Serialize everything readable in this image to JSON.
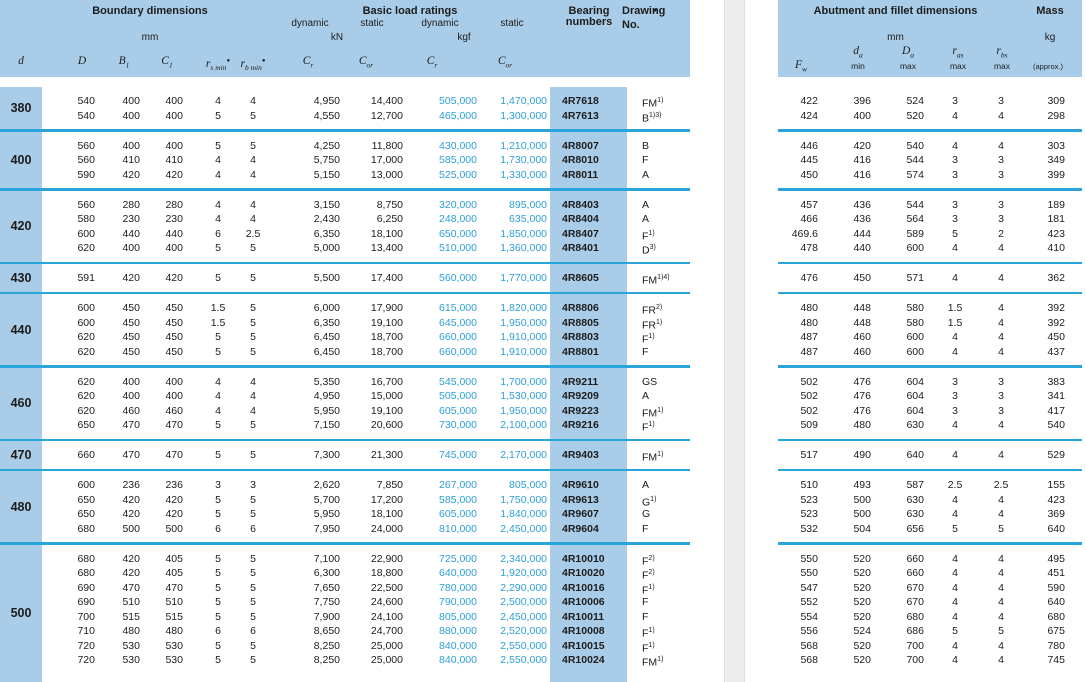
{
  "colors": {
    "band": "#a9cde9",
    "separator_line": "#29a5da",
    "kgf_text": "#2d9fd6",
    "gutter": "#ededeb"
  },
  "left_header": {
    "boundary_title": "Boundary dimensions",
    "boundary_unit": "mm",
    "load_title": "Basic load ratings",
    "dynamic1": "dynamic",
    "static1": "static",
    "dynamic2": "dynamic",
    "static2": "static",
    "kn": "kN",
    "kgf": "kgf",
    "bearing_title": "Bearing\nnumbers",
    "drawing_line1": "Drawing",
    "drawing_note": "●",
    "drawing_line2": "No.",
    "symbols": {
      "d": {
        "base": "d"
      },
      "D": {
        "base": "D"
      },
      "B1": {
        "base": "B",
        "sub": "1"
      },
      "C1": {
        "base": "C",
        "sub": "1"
      },
      "rs": {
        "base": "r",
        "sub": "s min",
        "note": "●"
      },
      "rb": {
        "base": "r",
        "sub": "b min",
        "note": "●"
      },
      "cr1": {
        "base": "C",
        "sub": "r"
      },
      "cor1": {
        "base": "C",
        "sub": "or"
      },
      "cr2": {
        "base": "C",
        "sub": "r"
      },
      "cor2": {
        "base": "C",
        "sub": "or"
      }
    }
  },
  "right_header": {
    "abutment_title": "Abutment and fillet dimensions",
    "unit": "mm",
    "mass_title": "Mass",
    "mass_unit": "kg",
    "approx": "(approx.)",
    "min": "min",
    "max": "max",
    "symbols": {
      "Fw": {
        "base": "F",
        "sub": "w"
      },
      "da": {
        "base": "d",
        "sub": "a"
      },
      "Da": {
        "base": "D",
        "sub": "a"
      },
      "ras": {
        "base": "r",
        "sub": "as"
      },
      "rbs": {
        "base": "r",
        "sub": "bs"
      }
    }
  },
  "groups": [
    {
      "d": "380",
      "rows": [
        {
          "D": "540",
          "B1": "400",
          "C1": "400",
          "rs": "4",
          "rb": "4",
          "cr_kn": "4,950",
          "cor_kn": "14,400",
          "cr_kgf": "505,000",
          "cor_kgf": "1,470,000",
          "bearing": "4R7618",
          "drawing": "FM",
          "drawing_sup": "1)"
        },
        {
          "D": "540",
          "B1": "400",
          "C1": "400",
          "rs": "5",
          "rb": "5",
          "cr_kn": "4,550",
          "cor_kn": "12,700",
          "cr_kgf": "465,000",
          "cor_kgf": "1,300,000",
          "bearing": "4R7613",
          "drawing": "B",
          "drawing_sup": "1)3)"
        }
      ],
      "right_rows": [
        {
          "fw": "422",
          "da": "396",
          "Da": "524",
          "ras": "3",
          "rbs": "3",
          "mass": "309"
        },
        {
          "fw": "424",
          "da": "400",
          "Da": "520",
          "ras": "4",
          "rbs": "4",
          "mass": "298"
        }
      ]
    },
    {
      "d": "400",
      "rows": [
        {
          "D": "560",
          "B1": "400",
          "C1": "400",
          "rs": "5",
          "rb": "5",
          "cr_kn": "4,250",
          "cor_kn": "11,800",
          "cr_kgf": "430,000",
          "cor_kgf": "1,210,000",
          "bearing": "4R8007",
          "drawing": "B",
          "drawing_sup": ""
        },
        {
          "D": "560",
          "B1": "410",
          "C1": "410",
          "rs": "4",
          "rb": "4",
          "cr_kn": "5,750",
          "cor_kn": "17,000",
          "cr_kgf": "585,000",
          "cor_kgf": "1,730,000",
          "bearing": "4R8010",
          "drawing": "F",
          "drawing_sup": ""
        },
        {
          "D": "590",
          "B1": "420",
          "C1": "420",
          "rs": "4",
          "rb": "4",
          "cr_kn": "5,150",
          "cor_kn": "13,000",
          "cr_kgf": "525,000",
          "cor_kgf": "1,330,000",
          "bearing": "4R8011",
          "drawing": "A",
          "drawing_sup": ""
        }
      ],
      "right_rows": [
        {
          "fw": "446",
          "da": "420",
          "Da": "540",
          "ras": "4",
          "rbs": "4",
          "mass": "303"
        },
        {
          "fw": "445",
          "da": "416",
          "Da": "544",
          "ras": "3",
          "rbs": "3",
          "mass": "349"
        },
        {
          "fw": "450",
          "da": "416",
          "Da": "574",
          "ras": "3",
          "rbs": "3",
          "mass": "399"
        }
      ]
    },
    {
      "d": "420",
      "rows": [
        {
          "D": "560",
          "B1": "280",
          "C1": "280",
          "rs": "4",
          "rb": "4",
          "cr_kn": "3,150",
          "cor_kn": "8,750",
          "cr_kgf": "320,000",
          "cor_kgf": "895,000",
          "bearing": "4R8403",
          "drawing": "A",
          "drawing_sup": ""
        },
        {
          "D": "580",
          "B1": "230",
          "C1": "230",
          "rs": "4",
          "rb": "4",
          "cr_kn": "2,430",
          "cor_kn": "6,250",
          "cr_kgf": "248,000",
          "cor_kgf": "635,000",
          "bearing": "4R8404",
          "drawing": "A",
          "drawing_sup": ""
        },
        {
          "D": "600",
          "B1": "440",
          "C1": "440",
          "rs": "6",
          "rb": "2.5",
          "cr_kn": "6,350",
          "cor_kn": "18,100",
          "cr_kgf": "650,000",
          "cor_kgf": "1,850,000",
          "bearing": "4R8407",
          "drawing": "F",
          "drawing_sup": "1)"
        },
        {
          "D": "620",
          "B1": "400",
          "C1": "400",
          "rs": "5",
          "rb": "5",
          "cr_kn": "5,000",
          "cor_kn": "13,400",
          "cr_kgf": "510,000",
          "cor_kgf": "1,360,000",
          "bearing": "4R8401",
          "drawing": "D",
          "drawing_sup": "3)"
        }
      ],
      "right_rows": [
        {
          "fw": "457",
          "da": "436",
          "Da": "544",
          "ras": "3",
          "rbs": "3",
          "mass": "189"
        },
        {
          "fw": "466",
          "da": "436",
          "Da": "564",
          "ras": "3",
          "rbs": "3",
          "mass": "181"
        },
        {
          "fw": "469.6",
          "da": "444",
          "Da": "589",
          "ras": "5",
          "rbs": "2",
          "mass": "423"
        },
        {
          "fw": "478",
          "da": "440",
          "Da": "600",
          "ras": "4",
          "rbs": "4",
          "mass": "410"
        }
      ]
    },
    {
      "d": "430",
      "rows": [
        {
          "D": "591",
          "B1": "420",
          "C1": "420",
          "rs": "5",
          "rb": "5",
          "cr_kn": "5,500",
          "cor_kn": "17,400",
          "cr_kgf": "560,000",
          "cor_kgf": "1,770,000",
          "bearing": "4R8605",
          "drawing": "FM",
          "drawing_sup": "1)4)"
        }
      ],
      "right_rows": [
        {
          "fw": "476",
          "da": "450",
          "Da": "571",
          "ras": "4",
          "rbs": "4",
          "mass": "362"
        }
      ]
    },
    {
      "d": "440",
      "rows": [
        {
          "D": "600",
          "B1": "450",
          "C1": "450",
          "rs": "1.5",
          "rb": "5",
          "cr_kn": "6,000",
          "cor_kn": "17,900",
          "cr_kgf": "615,000",
          "cor_kgf": "1,820,000",
          "bearing": "4R8806",
          "drawing": "FR",
          "drawing_sup": "2)"
        },
        {
          "D": "600",
          "B1": "450",
          "C1": "450",
          "rs": "1.5",
          "rb": "5",
          "cr_kn": "6,350",
          "cor_kn": "19,100",
          "cr_kgf": "645,000",
          "cor_kgf": "1,950,000",
          "bearing": "4R8805",
          "drawing": "FR",
          "drawing_sup": "1)"
        },
        {
          "D": "620",
          "B1": "450",
          "C1": "450",
          "rs": "5",
          "rb": "5",
          "cr_kn": "6,450",
          "cor_kn": "18,700",
          "cr_kgf": "660,000",
          "cor_kgf": "1,910,000",
          "bearing": "4R8803",
          "drawing": "F",
          "drawing_sup": "1)"
        },
        {
          "D": "620",
          "B1": "450",
          "C1": "450",
          "rs": "5",
          "rb": "5",
          "cr_kn": "6,450",
          "cor_kn": "18,700",
          "cr_kgf": "660,000",
          "cor_kgf": "1,910,000",
          "bearing": "4R8801",
          "drawing": "F",
          "drawing_sup": ""
        }
      ],
      "right_rows": [
        {
          "fw": "480",
          "da": "448",
          "Da": "580",
          "ras": "1.5",
          "rbs": "4",
          "mass": "392"
        },
        {
          "fw": "480",
          "da": "448",
          "Da": "580",
          "ras": "1.5",
          "rbs": "4",
          "mass": "392"
        },
        {
          "fw": "487",
          "da": "460",
          "Da": "600",
          "ras": "4",
          "rbs": "4",
          "mass": "450"
        },
        {
          "fw": "487",
          "da": "460",
          "Da": "600",
          "ras": "4",
          "rbs": "4",
          "mass": "437"
        }
      ]
    },
    {
      "d": "460",
      "rows": [
        {
          "D": "620",
          "B1": "400",
          "C1": "400",
          "rs": "4",
          "rb": "4",
          "cr_kn": "5,350",
          "cor_kn": "16,700",
          "cr_kgf": "545,000",
          "cor_kgf": "1,700,000",
          "bearing": "4R9211",
          "drawing": "GS",
          "drawing_sup": ""
        },
        {
          "D": "620",
          "B1": "400",
          "C1": "400",
          "rs": "4",
          "rb": "4",
          "cr_kn": "4,950",
          "cor_kn": "15,000",
          "cr_kgf": "505,000",
          "cor_kgf": "1,530,000",
          "bearing": "4R9209",
          "drawing": "A",
          "drawing_sup": ""
        },
        {
          "D": "620",
          "B1": "460",
          "C1": "460",
          "rs": "4",
          "rb": "4",
          "cr_kn": "5,950",
          "cor_kn": "19,100",
          "cr_kgf": "605,000",
          "cor_kgf": "1,950,000",
          "bearing": "4R9223",
          "drawing": "FM",
          "drawing_sup": "1)"
        },
        {
          "D": "650",
          "B1": "470",
          "C1": "470",
          "rs": "5",
          "rb": "5",
          "cr_kn": "7,150",
          "cor_kn": "20,600",
          "cr_kgf": "730,000",
          "cor_kgf": "2,100,000",
          "bearing": "4R9216",
          "drawing": "F",
          "drawing_sup": "1)"
        }
      ],
      "right_rows": [
        {
          "fw": "502",
          "da": "476",
          "Da": "604",
          "ras": "3",
          "rbs": "3",
          "mass": "383"
        },
        {
          "fw": "502",
          "da": "476",
          "Da": "604",
          "ras": "3",
          "rbs": "3",
          "mass": "341"
        },
        {
          "fw": "502",
          "da": "476",
          "Da": "604",
          "ras": "3",
          "rbs": "3",
          "mass": "417"
        },
        {
          "fw": "509",
          "da": "480",
          "Da": "630",
          "ras": "4",
          "rbs": "4",
          "mass": "540"
        }
      ]
    },
    {
      "d": "470",
      "rows": [
        {
          "D": "660",
          "B1": "470",
          "C1": "470",
          "rs": "5",
          "rb": "5",
          "cr_kn": "7,300",
          "cor_kn": "21,300",
          "cr_kgf": "745,000",
          "cor_kgf": "2,170,000",
          "bearing": "4R9403",
          "drawing": "FM",
          "drawing_sup": "1)"
        }
      ],
      "right_rows": [
        {
          "fw": "517",
          "da": "490",
          "Da": "640",
          "ras": "4",
          "rbs": "4",
          "mass": "529"
        }
      ]
    },
    {
      "d": "480",
      "rows": [
        {
          "D": "600",
          "B1": "236",
          "C1": "236",
          "rs": "3",
          "rb": "3",
          "cr_kn": "2,620",
          "cor_kn": "7,850",
          "cr_kgf": "267,000",
          "cor_kgf": "805,000",
          "bearing": "4R9610",
          "drawing": "A",
          "drawing_sup": ""
        },
        {
          "D": "650",
          "B1": "420",
          "C1": "420",
          "rs": "5",
          "rb": "5",
          "cr_kn": "5,700",
          "cor_kn": "17,200",
          "cr_kgf": "585,000",
          "cor_kgf": "1,750,000",
          "bearing": "4R9613",
          "drawing": "G",
          "drawing_sup": "1)"
        },
        {
          "D": "650",
          "B1": "420",
          "C1": "420",
          "rs": "5",
          "rb": "5",
          "cr_kn": "5,950",
          "cor_kn": "18,100",
          "cr_kgf": "605,000",
          "cor_kgf": "1,840,000",
          "bearing": "4R9607",
          "drawing": "G",
          "drawing_sup": ""
        },
        {
          "D": "680",
          "B1": "500",
          "C1": "500",
          "rs": "6",
          "rb": "6",
          "cr_kn": "7,950",
          "cor_kn": "24,000",
          "cr_kgf": "810,000",
          "cor_kgf": "2,450,000",
          "bearing": "4R9604",
          "drawing": "F",
          "drawing_sup": ""
        }
      ],
      "right_rows": [
        {
          "fw": "510",
          "da": "493",
          "Da": "587",
          "ras": "2.5",
          "rbs": "2.5",
          "mass": "155"
        },
        {
          "fw": "523",
          "da": "500",
          "Da": "630",
          "ras": "4",
          "rbs": "4",
          "mass": "423"
        },
        {
          "fw": "523",
          "da": "500",
          "Da": "630",
          "ras": "4",
          "rbs": "4",
          "mass": "369"
        },
        {
          "fw": "532",
          "da": "504",
          "Da": "656",
          "ras": "5",
          "rbs": "5",
          "mass": "640"
        }
      ]
    },
    {
      "d": "500",
      "rows": [
        {
          "D": "680",
          "B1": "420",
          "C1": "405",
          "rs": "5",
          "rb": "5",
          "cr_kn": "7,100",
          "cor_kn": "22,900",
          "cr_kgf": "725,000",
          "cor_kgf": "2,340,000",
          "bearing": "4R10010",
          "drawing": "F",
          "drawing_sup": "2)"
        },
        {
          "D": "680",
          "B1": "420",
          "C1": "405",
          "rs": "5",
          "rb": "5",
          "cr_kn": "6,300",
          "cor_kn": "18,800",
          "cr_kgf": "640,000",
          "cor_kgf": "1,920,000",
          "bearing": "4R10020",
          "drawing": "F",
          "drawing_sup": "2)"
        },
        {
          "D": "690",
          "B1": "470",
          "C1": "470",
          "rs": "5",
          "rb": "5",
          "cr_kn": "7,650",
          "cor_kn": "22,500",
          "cr_kgf": "780,000",
          "cor_kgf": "2,290,000",
          "bearing": "4R10016",
          "drawing": "F",
          "drawing_sup": "1)"
        },
        {
          "D": "690",
          "B1": "510",
          "C1": "510",
          "rs": "5",
          "rb": "5",
          "cr_kn": "7,750",
          "cor_kn": "24,600",
          "cr_kgf": "790,000",
          "cor_kgf": "2,500,000",
          "bearing": "4R10006",
          "drawing": "F",
          "drawing_sup": ""
        },
        {
          "D": "700",
          "B1": "515",
          "C1": "515",
          "rs": "5",
          "rb": "5",
          "cr_kn": "7,900",
          "cor_kn": "24,100",
          "cr_kgf": "805,000",
          "cor_kgf": "2,450,000",
          "bearing": "4R10011",
          "drawing": "F",
          "drawing_sup": ""
        },
        {
          "D": "710",
          "B1": "480",
          "C1": "480",
          "rs": "6",
          "rb": "6",
          "cr_kn": "8,650",
          "cor_kn": "24,700",
          "cr_kgf": "880,000",
          "cor_kgf": "2,520,000",
          "bearing": "4R10008",
          "drawing": "F",
          "drawing_sup": "1)"
        },
        {
          "D": "720",
          "B1": "530",
          "C1": "530",
          "rs": "5",
          "rb": "5",
          "cr_kn": "8,250",
          "cor_kn": "25,000",
          "cr_kgf": "840,000",
          "cor_kgf": "2,550,000",
          "bearing": "4R10015",
          "drawing": "F",
          "drawing_sup": "1)"
        },
        {
          "D": "720",
          "B1": "530",
          "C1": "530",
          "rs": "5",
          "rb": "5",
          "cr_kn": "8,250",
          "cor_kn": "25,000",
          "cr_kgf": "840,000",
          "cor_kgf": "2,550,000",
          "bearing": "4R10024",
          "drawing": "FM",
          "drawing_sup": "1)"
        }
      ],
      "right_rows": [
        {
          "fw": "550",
          "da": "520",
          "Da": "660",
          "ras": "4",
          "rbs": "4",
          "mass": "495"
        },
        {
          "fw": "550",
          "da": "520",
          "Da": "660",
          "ras": "4",
          "rbs": "4",
          "mass": "451"
        },
        {
          "fw": "547",
          "da": "520",
          "Da": "670",
          "ras": "4",
          "rbs": "4",
          "mass": "590"
        },
        {
          "fw": "552",
          "da": "520",
          "Da": "670",
          "ras": "4",
          "rbs": "4",
          "mass": "640"
        },
        {
          "fw": "554",
          "da": "520",
          "Da": "680",
          "ras": "4",
          "rbs": "4",
          "mass": "680"
        },
        {
          "fw": "556",
          "da": "524",
          "Da": "686",
          "ras": "5",
          "rbs": "5",
          "mass": "675"
        },
        {
          "fw": "568",
          "da": "520",
          "Da": "700",
          "ras": "4",
          "rbs": "4",
          "mass": "780"
        },
        {
          "fw": "568",
          "da": "520",
          "Da": "700",
          "ras": "4",
          "rbs": "4",
          "mass": "745"
        }
      ]
    }
  ]
}
